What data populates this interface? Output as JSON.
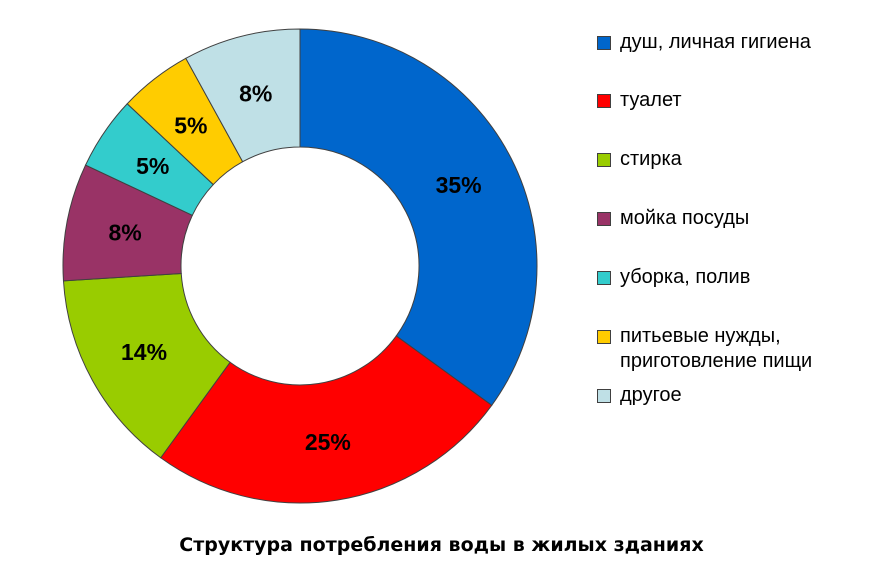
{
  "chart_data": {
    "type": "pie",
    "donut": true,
    "title": "Структура потребления воды в жилых зданиях",
    "legend_position": "right",
    "slices": [
      {
        "label": "душ, личная гигиена",
        "value": 35,
        "display": "35%",
        "color": "#0066CC"
      },
      {
        "label": "туалет",
        "value": 25,
        "display": "25%",
        "color": "#FF0000"
      },
      {
        "label": "стирка",
        "value": 14,
        "display": "14%",
        "color": "#99CC00"
      },
      {
        "label": "мойка посуды",
        "value": 8,
        "display": "8%",
        "color": "#993366"
      },
      {
        "label": "уборка, полив",
        "value": 5,
        "display": "5%",
        "color": "#33CCCC"
      },
      {
        "label": "питьевые нужды,\nприготовление пищи",
        "value": 5,
        "display": "5%",
        "color": "#FFCC00"
      },
      {
        "label": "другое",
        "value": 8,
        "display": "8%",
        "color": "#BFE0E6"
      }
    ]
  }
}
